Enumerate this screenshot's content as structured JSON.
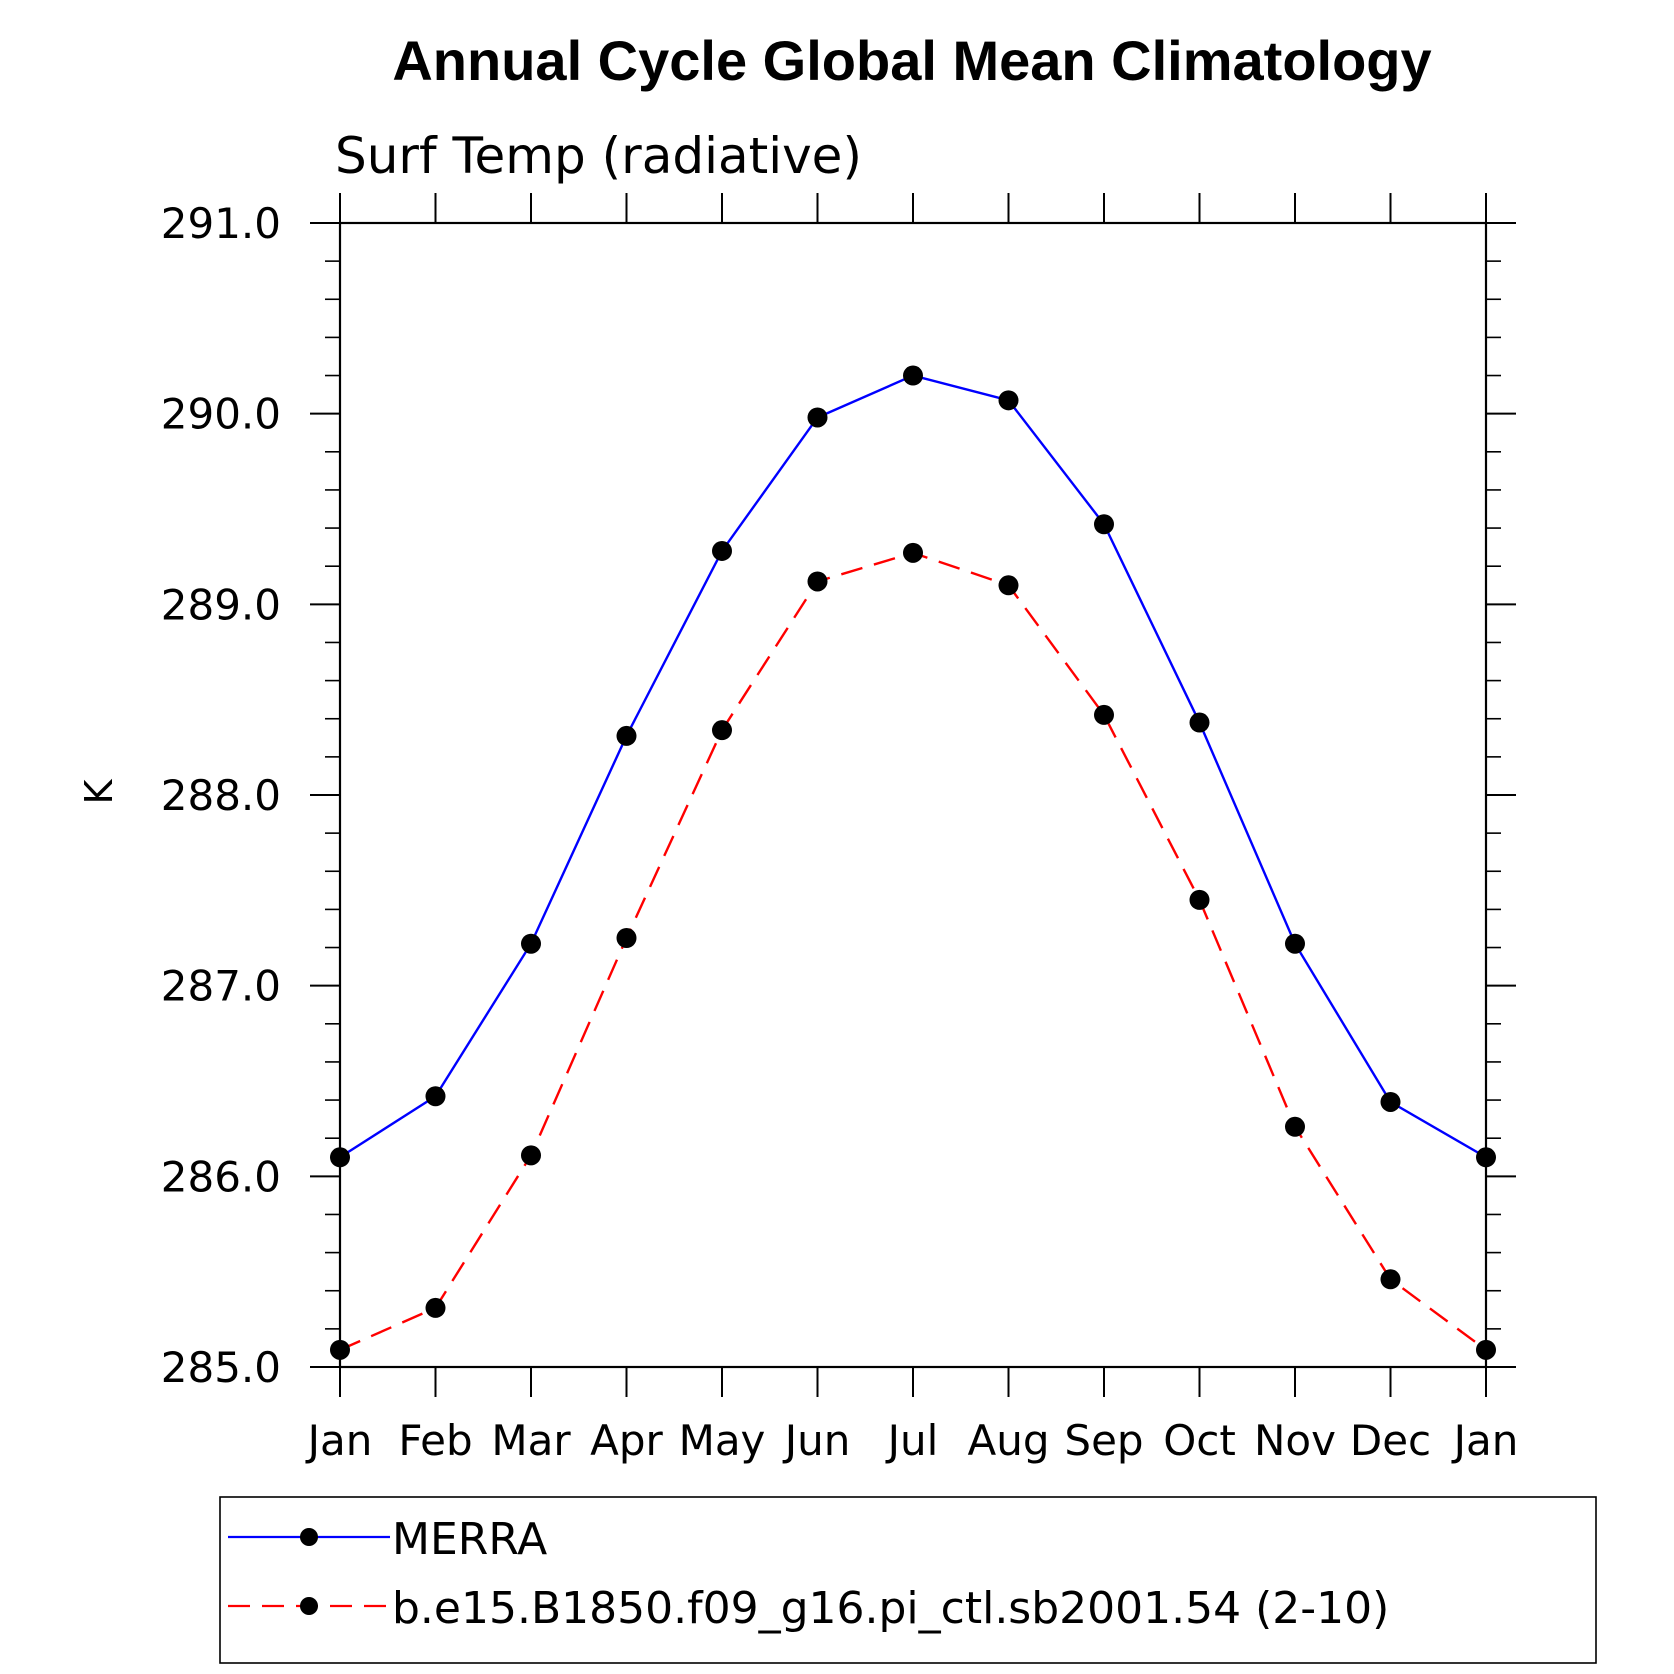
{
  "chart_data": {
    "type": "line",
    "title": "Annual Cycle Global Mean Climatology",
    "subtitle": "Surf Temp (radiative)",
    "xlabel": "",
    "ylabel": "K",
    "categories": [
      "Jan",
      "Feb",
      "Mar",
      "Apr",
      "May",
      "Jun",
      "Jul",
      "Aug",
      "Sep",
      "Oct",
      "Nov",
      "Dec",
      "Jan"
    ],
    "ylim": [
      285.0,
      291.0
    ],
    "yticks": [
      "285.0",
      "286.0",
      "287.0",
      "288.0",
      "289.0",
      "290.0",
      "291.0"
    ],
    "ytick_values": [
      285,
      286,
      287,
      288,
      289,
      290,
      291
    ],
    "grid": false,
    "legend_position": "bottom",
    "series": [
      {
        "name": "MERRA",
        "color": "#0000ff",
        "line_style": "solid",
        "marker": "filled-circle",
        "values": [
          286.1,
          286.42,
          287.22,
          288.31,
          289.28,
          289.98,
          290.2,
          290.07,
          289.42,
          288.38,
          287.22,
          286.39,
          286.1
        ]
      },
      {
        "name": "b.e15.B1850.f09_g16.pi_ctl.sb2001.54 (2-10)",
        "color": "#ff0000",
        "line_style": "dashed",
        "marker": "filled-circle",
        "values": [
          285.09,
          285.31,
          286.11,
          287.25,
          288.34,
          289.12,
          289.27,
          289.1,
          288.42,
          287.45,
          286.26,
          285.46,
          285.09
        ]
      }
    ]
  }
}
